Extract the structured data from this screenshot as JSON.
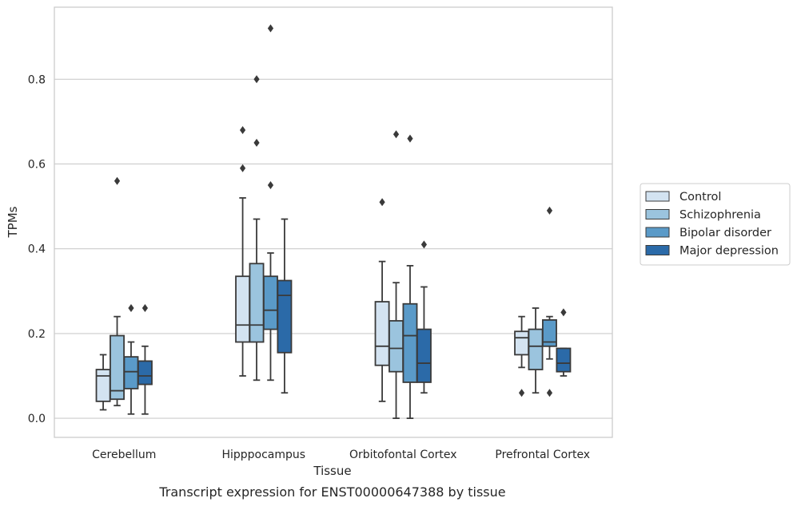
{
  "chart_data": {
    "type": "box",
    "xlabel": "Tissue",
    "ylabel": "TPMs",
    "caption": "Transcript expression for ENST00000647388 by tissue",
    "ylim": [
      -0.045,
      0.97
    ],
    "yticks": [
      0.0,
      0.2,
      0.4,
      0.6,
      0.8
    ],
    "ytick_labels": [
      "0.0",
      "0.2",
      "0.4",
      "0.6",
      "0.8"
    ],
    "grid": "horizontal",
    "legend_position": "right",
    "categories": [
      "Cerebellum",
      "Hipppocampus",
      "Orbitofontal Cortex",
      "Prefrontal Cortex"
    ],
    "series": [
      {
        "name": "Control",
        "color": "#d3e3f1",
        "boxes": [
          {
            "whislo": 0.02,
            "q1": 0.04,
            "med": 0.1,
            "q3": 0.115,
            "whishi": 0.15,
            "fliers": []
          },
          {
            "whislo": 0.1,
            "q1": 0.18,
            "med": 0.22,
            "q3": 0.335,
            "whishi": 0.52,
            "fliers": [
              0.59,
              0.68
            ]
          },
          {
            "whislo": 0.04,
            "q1": 0.125,
            "med": 0.17,
            "q3": 0.275,
            "whishi": 0.37,
            "fliers": [
              0.51
            ]
          },
          {
            "whislo": 0.12,
            "q1": 0.15,
            "med": 0.19,
            "q3": 0.205,
            "whishi": 0.24,
            "fliers": [
              0.06
            ]
          }
        ]
      },
      {
        "name": "Schizophrenia",
        "color": "#9bc4de",
        "boxes": [
          {
            "whislo": 0.03,
            "q1": 0.045,
            "med": 0.065,
            "q3": 0.195,
            "whishi": 0.24,
            "fliers": [
              0.56
            ]
          },
          {
            "whislo": 0.09,
            "q1": 0.18,
            "med": 0.22,
            "q3": 0.365,
            "whishi": 0.47,
            "fliers": [
              0.65,
              0.8
            ]
          },
          {
            "whislo": 0.0,
            "q1": 0.11,
            "med": 0.165,
            "q3": 0.23,
            "whishi": 0.32,
            "fliers": [
              0.67
            ]
          },
          {
            "whislo": 0.06,
            "q1": 0.115,
            "med": 0.17,
            "q3": 0.21,
            "whishi": 0.26,
            "fliers": []
          }
        ]
      },
      {
        "name": "Bipolar disorder",
        "color": "#5a9ac8",
        "boxes": [
          {
            "whislo": 0.01,
            "q1": 0.07,
            "med": 0.11,
            "q3": 0.145,
            "whishi": 0.18,
            "fliers": [
              0.26
            ]
          },
          {
            "whislo": 0.09,
            "q1": 0.21,
            "med": 0.255,
            "q3": 0.335,
            "whishi": 0.39,
            "fliers": [
              0.55,
              0.92
            ]
          },
          {
            "whislo": 0.0,
            "q1": 0.085,
            "med": 0.195,
            "q3": 0.27,
            "whishi": 0.36,
            "fliers": [
              0.66
            ]
          },
          {
            "whislo": 0.14,
            "q1": 0.17,
            "med": 0.18,
            "q3": 0.232,
            "whishi": 0.24,
            "fliers": [
              0.06,
              0.49
            ]
          }
        ]
      },
      {
        "name": "Major depression",
        "color": "#2b6aa8",
        "boxes": [
          {
            "whislo": 0.01,
            "q1": 0.08,
            "med": 0.1,
            "q3": 0.135,
            "whishi": 0.17,
            "fliers": [
              0.26
            ]
          },
          {
            "whislo": 0.06,
            "q1": 0.155,
            "med": 0.29,
            "q3": 0.325,
            "whishi": 0.47,
            "fliers": []
          },
          {
            "whislo": 0.06,
            "q1": 0.085,
            "med": 0.13,
            "q3": 0.21,
            "whishi": 0.31,
            "fliers": [
              0.41
            ]
          },
          {
            "whislo": 0.1,
            "q1": 0.11,
            "med": 0.13,
            "q3": 0.165,
            "whishi": 0.165,
            "fliers": [
              0.25
            ]
          }
        ]
      }
    ]
  }
}
